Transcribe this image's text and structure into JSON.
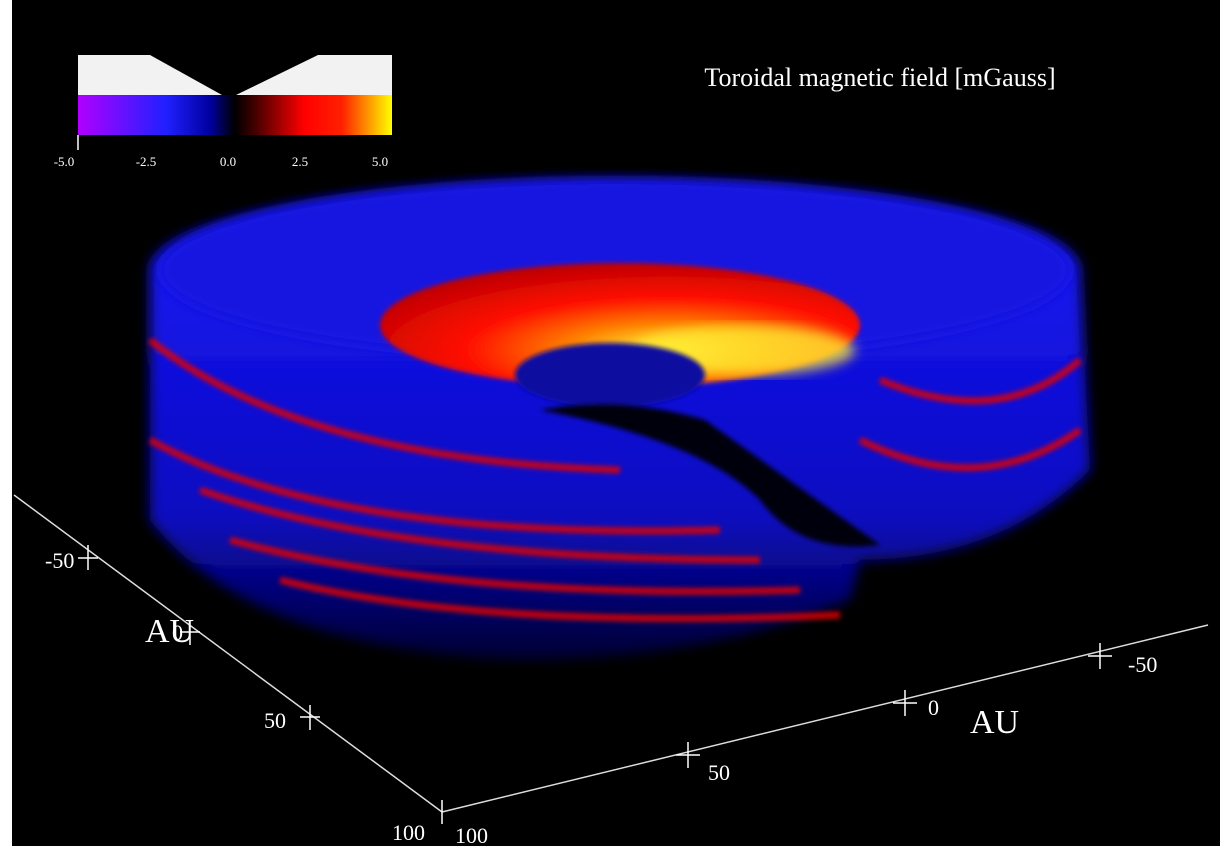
{
  "title": "Toroidal magnetic field [mGauss]",
  "colorbar": {
    "ticks": [
      "-5.0",
      "-2.5",
      "0.0",
      "2.5",
      "5.0"
    ]
  },
  "axes": {
    "left": {
      "label": "AU",
      "ticks": [
        "-50",
        "0",
        "50",
        "100"
      ]
    },
    "right": {
      "label": "AU",
      "ticks": [
        "100",
        "50",
        "0",
        "-50"
      ]
    }
  }
}
